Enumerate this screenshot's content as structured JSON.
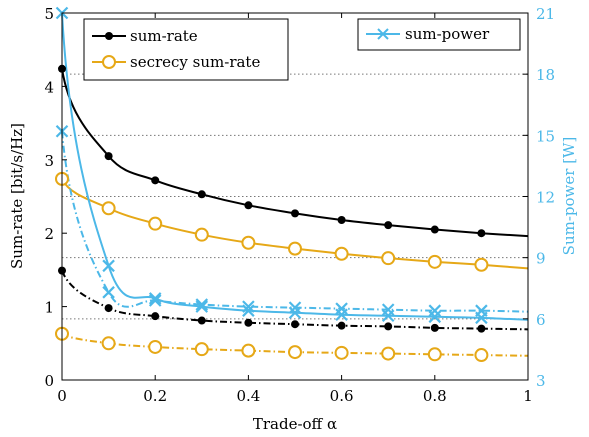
{
  "chart_data": {
    "type": "line",
    "xlabel": "Trade-off α",
    "ylabel_left": "Sum-rate  [bit/s/Hz]",
    "ylabel_right": "Sum-power  [W]",
    "xlim": [
      0,
      1
    ],
    "ylim_left": [
      0,
      5
    ],
    "ylim_right": [
      3,
      21
    ],
    "xticks": [
      "0",
      "0.2",
      "0.4",
      "0.6",
      "0.8",
      "1"
    ],
    "xtick_values": [
      0,
      0.2,
      0.4,
      0.6,
      0.8,
      1
    ],
    "yticks_left": [
      "0",
      "1",
      "2",
      "3",
      "4",
      "5"
    ],
    "ytick_values_left": [
      0,
      1,
      2,
      3,
      4,
      5
    ],
    "yticks_right": [
      "3",
      "6",
      "9",
      "12",
      "15",
      "18",
      "21"
    ],
    "ytick_values_right": [
      3,
      6,
      9,
      12,
      15,
      18,
      21
    ],
    "grid": "horizontal dotted at right-axis ticks",
    "colors": {
      "black": "#000000",
      "orange": "#e6a817",
      "blue": "#4cb8e8"
    },
    "legend_left": {
      "placement": "top-left",
      "entries": [
        {
          "label": "sum-rate",
          "color": "#000000",
          "marker": "filled-circle"
        },
        {
          "label": "secrecy sum-rate",
          "color": "#e6a817",
          "marker": "open-circle"
        }
      ]
    },
    "legend_right": {
      "placement": "top-right",
      "entries": [
        {
          "label": "sum-power",
          "color": "#4cb8e8",
          "marker": "cross"
        }
      ]
    },
    "series": [
      {
        "label": "sum-rate",
        "axis": "left",
        "color": "#000000",
        "style": "solid",
        "marker": "filled-circle",
        "x": [
          0,
          0.1,
          0.2,
          0.3,
          0.4,
          0.5,
          0.6,
          0.7,
          0.8,
          0.9
        ],
        "y": [
          4.24,
          3.05,
          2.72,
          2.53,
          2.38,
          2.27,
          2.18,
          2.11,
          2.05,
          2.0
        ],
        "curve_end": 1.96
      },
      {
        "label": "secrecy sum-rate",
        "axis": "left",
        "color": "#e6a817",
        "style": "solid",
        "marker": "open-circle",
        "x": [
          0,
          0.1,
          0.2,
          0.3,
          0.4,
          0.5,
          0.6,
          0.7,
          0.8,
          0.9
        ],
        "y": [
          2.74,
          2.34,
          2.13,
          1.98,
          1.87,
          1.79,
          1.72,
          1.66,
          1.61,
          1.57
        ],
        "curve_end": 1.52
      },
      {
        "label": "sum-power",
        "axis": "right",
        "color": "#4cb8e8",
        "style": "solid",
        "marker": "cross",
        "x": [
          0,
          0.1,
          0.2,
          0.3,
          0.4,
          0.5,
          0.6,
          0.7,
          0.8,
          0.9
        ],
        "y": [
          21.0,
          8.6,
          7.0,
          6.6,
          6.4,
          6.3,
          6.2,
          6.15,
          6.1,
          6.05
        ],
        "curve_end": 5.95
      },
      {
        "label": "sum-rate",
        "axis": "left",
        "color": "#000000",
        "style": "dashdot",
        "marker": "filled-circle",
        "x": [
          0,
          0.1,
          0.2,
          0.3,
          0.4,
          0.5,
          0.6,
          0.7,
          0.8,
          0.9
        ],
        "y": [
          1.49,
          0.98,
          0.87,
          0.81,
          0.78,
          0.76,
          0.74,
          0.73,
          0.71,
          0.7
        ],
        "curve_end": 0.69
      },
      {
        "label": "secrecy sum-rate",
        "axis": "left",
        "color": "#e6a817",
        "style": "dashdot",
        "marker": "open-circle",
        "x": [
          0,
          0.1,
          0.2,
          0.3,
          0.4,
          0.5,
          0.6,
          0.7,
          0.8,
          0.9
        ],
        "y": [
          0.63,
          0.5,
          0.45,
          0.42,
          0.4,
          0.38,
          0.37,
          0.36,
          0.35,
          0.34
        ],
        "curve_end": 0.33
      },
      {
        "label": "sum-power",
        "axis": "right",
        "color": "#4cb8e8",
        "style": "dashdot",
        "marker": "cross",
        "x": [
          0,
          0.1,
          0.2,
          0.3,
          0.4,
          0.5,
          0.6,
          0.7,
          0.8,
          0.9
        ],
        "y": [
          15.2,
          7.3,
          6.9,
          6.7,
          6.6,
          6.55,
          6.5,
          6.45,
          6.4,
          6.4
        ],
        "curve_end": 6.35
      }
    ]
  }
}
